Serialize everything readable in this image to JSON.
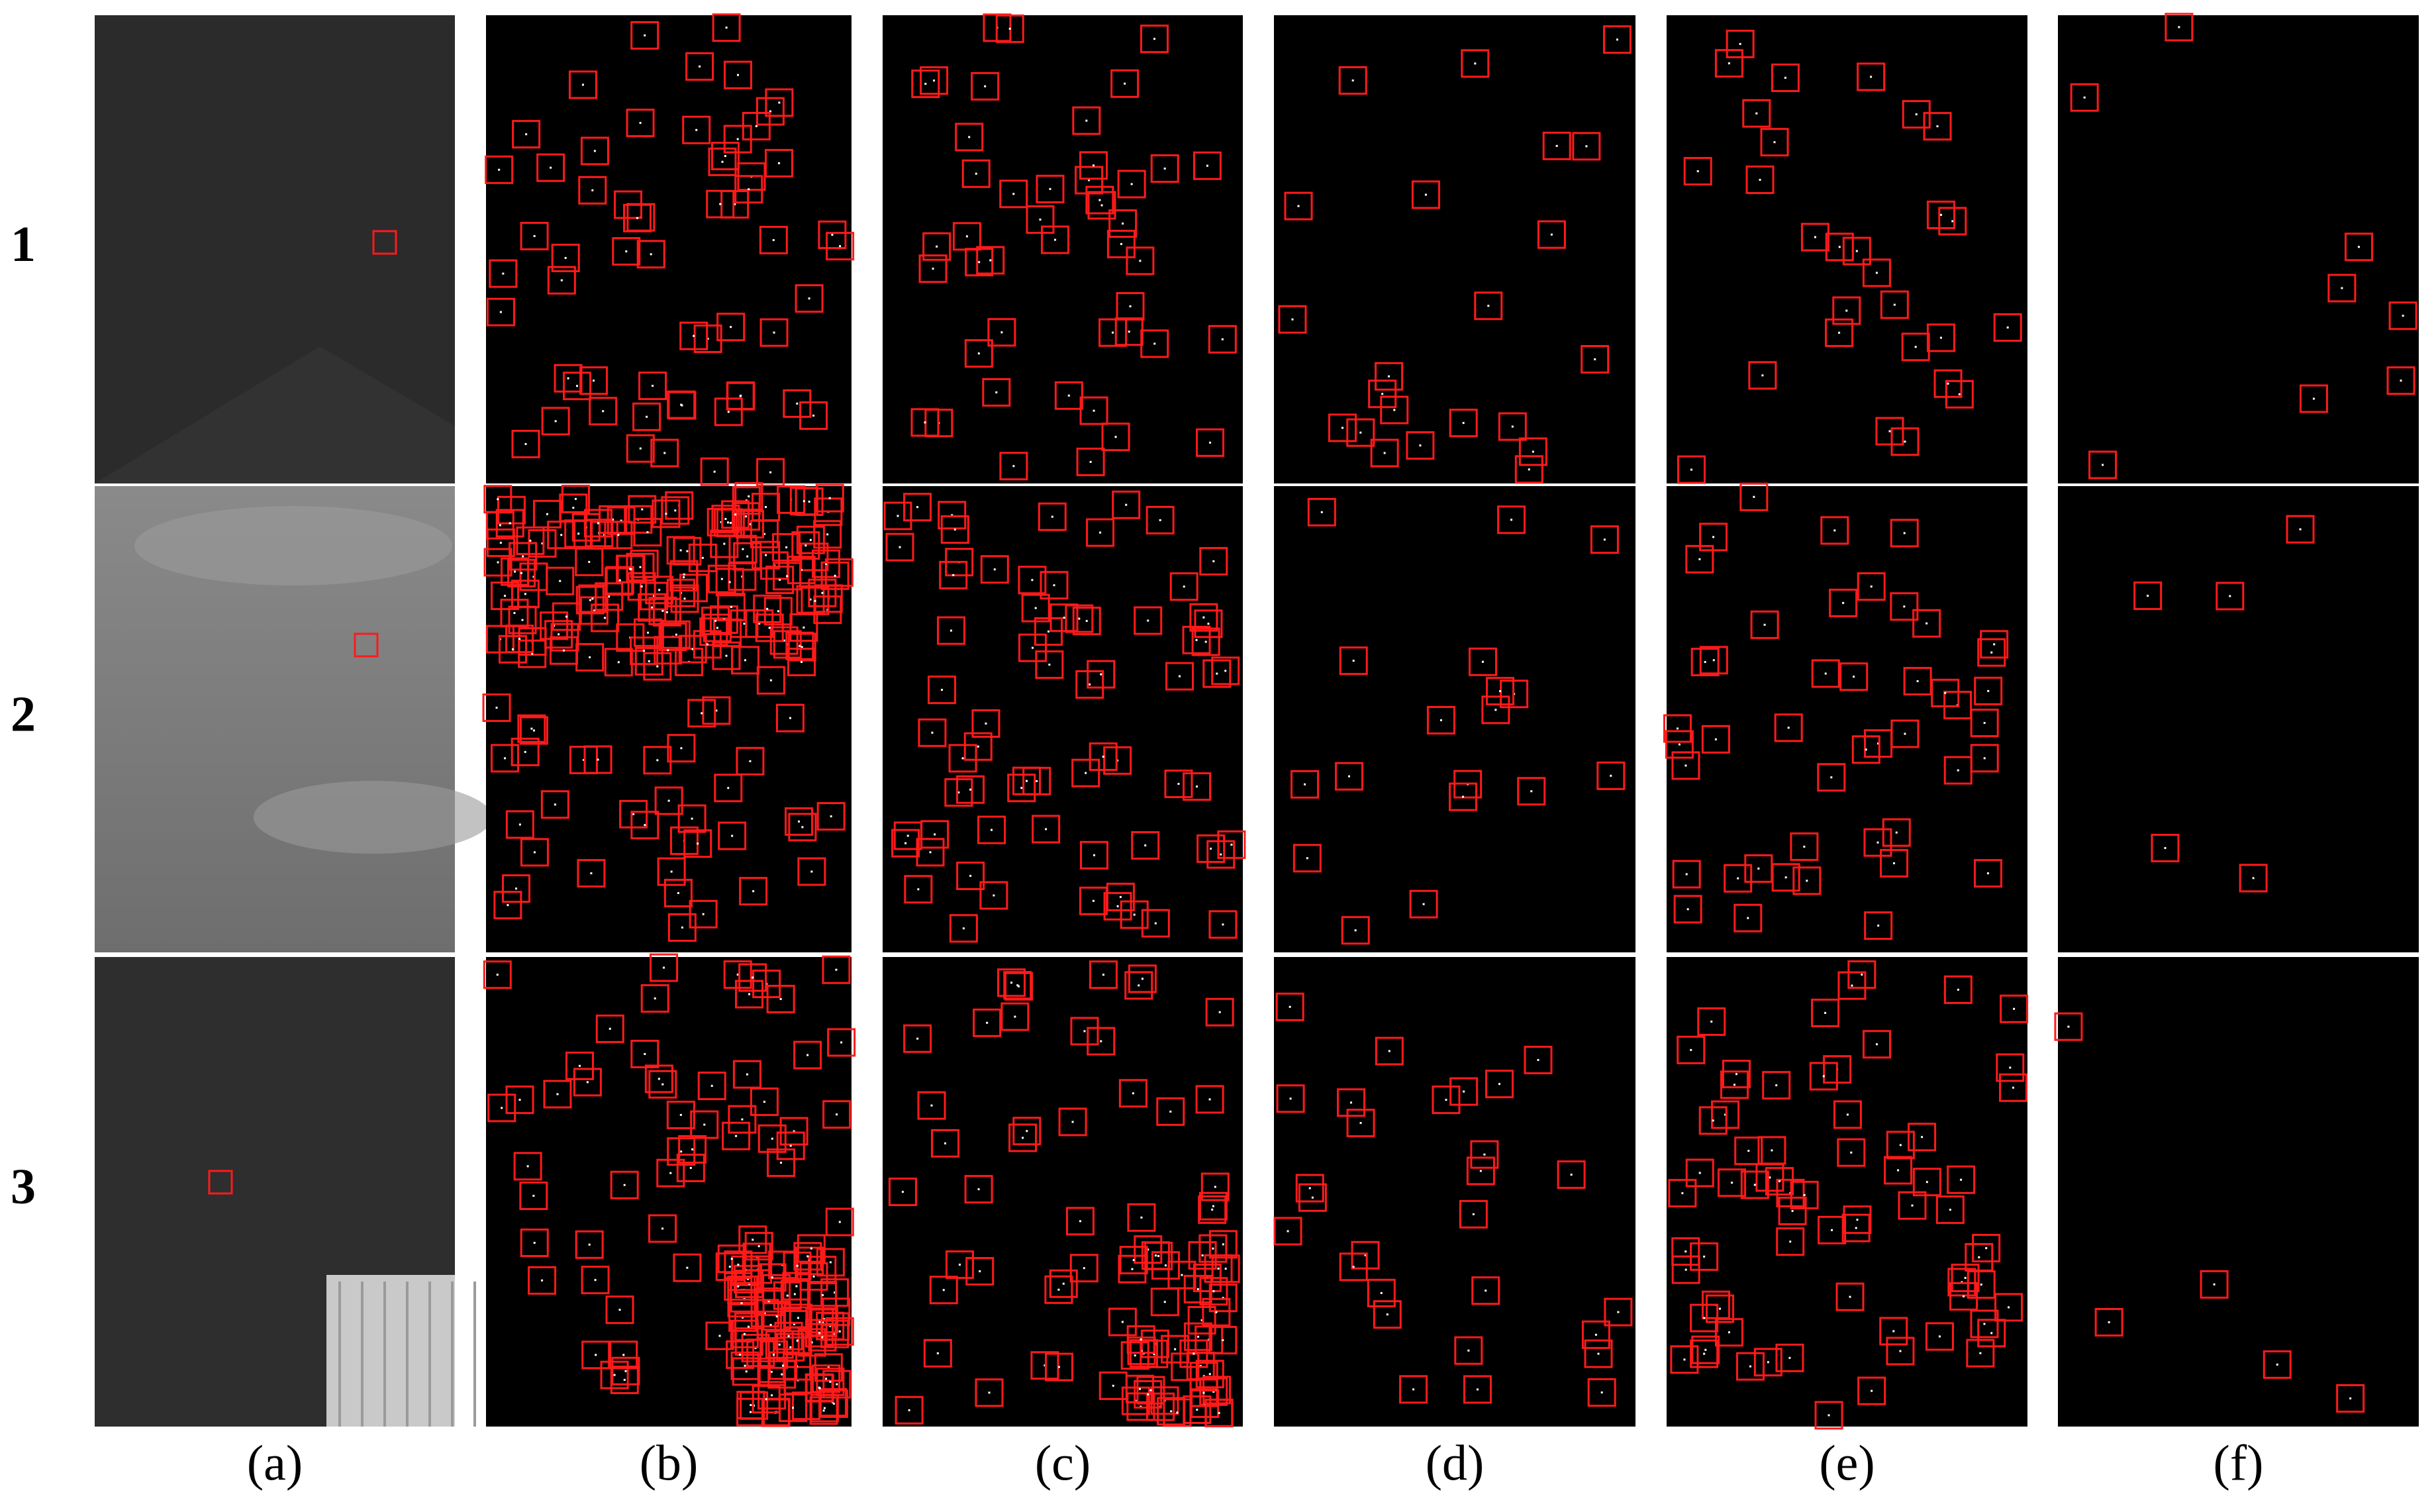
{
  "row_labels": [
    "1",
    "2",
    "3"
  ],
  "column_labels": [
    "(a)",
    "(b)",
    "(c)",
    "(d)",
    "(e)",
    "(f)"
  ]
}
